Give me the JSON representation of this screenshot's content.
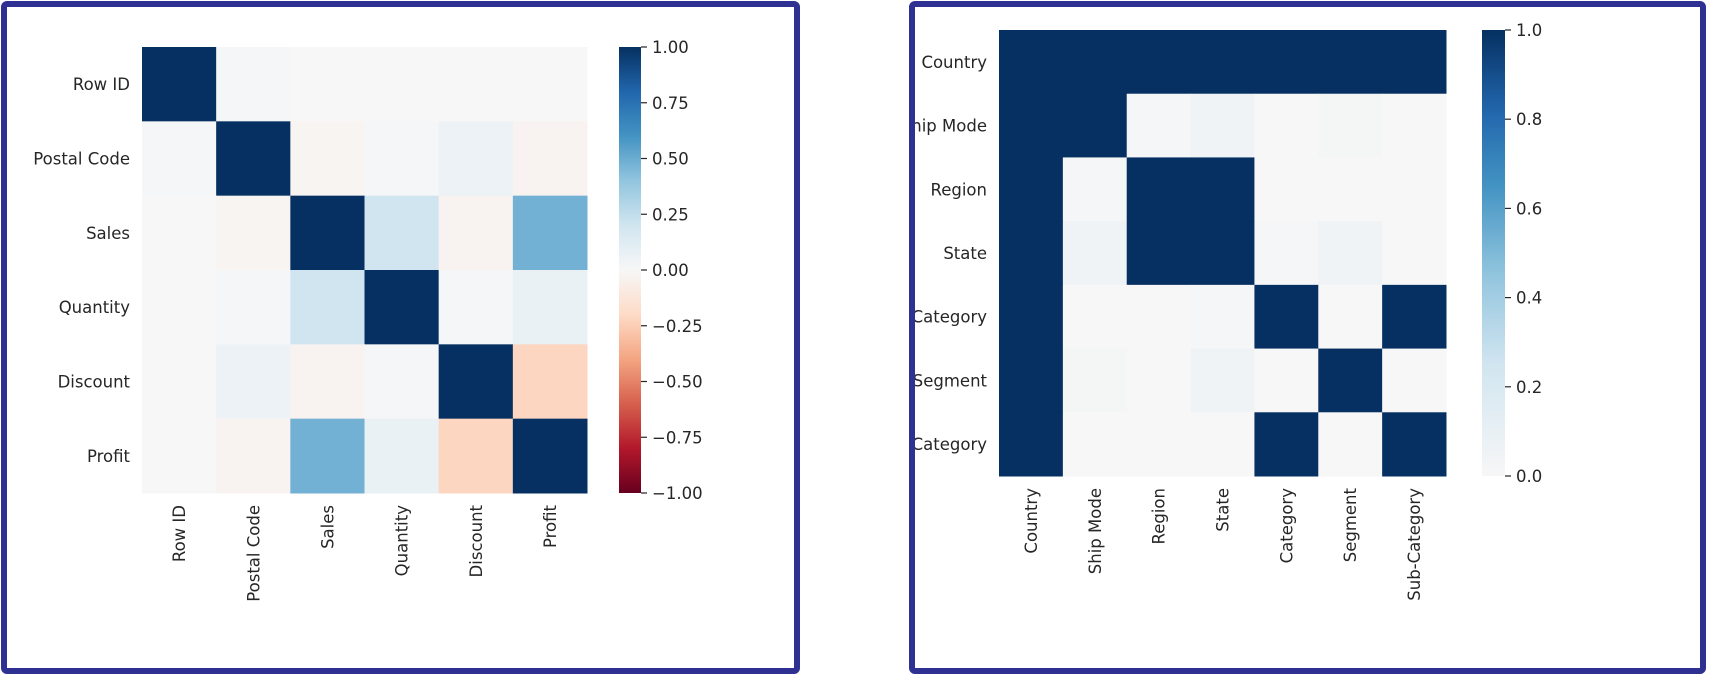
{
  "chart_data": [
    {
      "type": "heatmap",
      "title": "",
      "xlabel": "",
      "ylabel": "",
      "rows": [
        "Row ID",
        "Postal Code",
        "Sales",
        "Quantity",
        "Discount",
        "Profit"
      ],
      "columns": [
        "Row ID",
        "Postal Code",
        "Sales",
        "Quantity",
        "Discount",
        "Profit"
      ],
      "values": [
        [
          1.0,
          0.01,
          0.0,
          0.0,
          0.0,
          0.0
        ],
        [
          0.01,
          1.0,
          -0.02,
          0.01,
          0.06,
          -0.03
        ],
        [
          0.0,
          -0.02,
          1.0,
          0.2,
          -0.03,
          0.48
        ],
        [
          0.0,
          0.01,
          0.2,
          1.0,
          0.01,
          0.07
        ],
        [
          0.0,
          0.06,
          -0.03,
          0.01,
          1.0,
          -0.22
        ],
        [
          0.0,
          -0.03,
          0.48,
          0.07,
          -0.22,
          1.0
        ]
      ],
      "colorbar": {
        "min": -1.0,
        "max": 1.0,
        "colormap": "RdBu",
        "ticks": [
          "1.00",
          "0.75",
          "0.50",
          "0.25",
          "0.00",
          "−0.25",
          "−0.50",
          "−0.75",
          "−1.00"
        ]
      }
    },
    {
      "type": "heatmap",
      "title": "",
      "xlabel": "",
      "ylabel": "",
      "rows": [
        "Country",
        "Ship Mode",
        "Region",
        "State",
        "Category",
        "Segment",
        "Sub-Category"
      ],
      "columns": [
        "Country",
        "Ship Mode",
        "Region",
        "State",
        "Category",
        "Segment",
        "Sub-Category"
      ],
      "values": [
        [
          1.0,
          1.0,
          1.0,
          1.0,
          1.0,
          1.0,
          1.0
        ],
        [
          1.0,
          1.0,
          0.01,
          0.05,
          0.0,
          0.02,
          0.0
        ],
        [
          1.0,
          0.01,
          1.0,
          1.0,
          0.0,
          0.0,
          0.0
        ],
        [
          1.0,
          0.05,
          1.0,
          1.0,
          0.01,
          0.05,
          0.0
        ],
        [
          1.0,
          0.0,
          0.0,
          0.01,
          1.0,
          0.0,
          1.0
        ],
        [
          1.0,
          0.02,
          0.0,
          0.05,
          0.0,
          1.0,
          0.0
        ],
        [
          1.0,
          0.0,
          0.0,
          0.0,
          1.0,
          0.0,
          1.0
        ]
      ],
      "colorbar": {
        "min": 0.0,
        "max": 1.0,
        "colormap": "Blues-from-white",
        "ticks": [
          "1.0",
          "0.8",
          "0.6",
          "0.4",
          "0.2",
          "0.0"
        ]
      }
    }
  ],
  "colors": {
    "frame": "#2e3192",
    "max": "#053061",
    "min": "#67001f",
    "zero": "#f7f7f7"
  }
}
